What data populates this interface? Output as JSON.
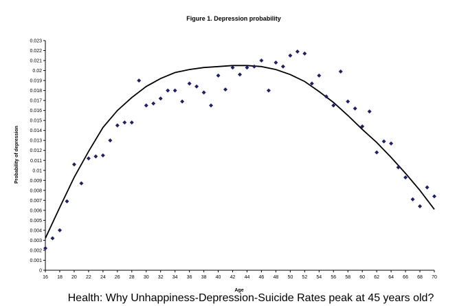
{
  "chart_data": {
    "type": "scatter",
    "title": "Figure 1. Depression probability",
    "xlabel": "Age",
    "ylabel": "Probability of depression",
    "xlim": [
      16,
      70
    ],
    "ylim": [
      0,
      0.023
    ],
    "x_ticks": [
      "16",
      "18",
      "20",
      "22",
      "24",
      "26",
      "28",
      "30",
      "32",
      "34",
      "36",
      "38",
      "40",
      "42",
      "44",
      "46",
      "48",
      "50",
      "52",
      "54",
      "56",
      "58",
      "60",
      "62",
      "64",
      "66",
      "68",
      "70"
    ],
    "y_ticks": [
      "0",
      "0.001",
      "0.002",
      "0.003",
      "0.004",
      "0.005",
      "0.006",
      "0.007",
      "0.008",
      "0.009",
      "0.01",
      "0.011",
      "0.012",
      "0.013",
      "0.014",
      "0.015",
      "0.016",
      "0.017",
      "0.018",
      "0.019",
      "0.02",
      "0.021",
      "0.022",
      "0.023"
    ],
    "grid": false,
    "series": [
      {
        "kind": "points",
        "marker": "diamond",
        "color": "#1f1f6e",
        "points": [
          [
            16,
            0.0022
          ],
          [
            17,
            0.0032
          ],
          [
            18,
            0.004
          ],
          [
            19,
            0.0069
          ],
          [
            20,
            0.0106
          ],
          [
            21,
            0.0087
          ],
          [
            22,
            0.0112
          ],
          [
            23,
            0.0114
          ],
          [
            24,
            0.0115
          ],
          [
            25,
            0.013
          ],
          [
            26,
            0.0145
          ],
          [
            27,
            0.0148
          ],
          [
            28,
            0.0148
          ],
          [
            29,
            0.019
          ],
          [
            30,
            0.0165
          ],
          [
            31,
            0.0167
          ],
          [
            32,
            0.0172
          ],
          [
            33,
            0.018
          ],
          [
            34,
            0.018
          ],
          [
            35,
            0.0169
          ],
          [
            36,
            0.0187
          ],
          [
            37,
            0.0184
          ],
          [
            38,
            0.0178
          ],
          [
            39,
            0.0165
          ],
          [
            40,
            0.0195
          ],
          [
            41,
            0.0181
          ],
          [
            42,
            0.0203
          ],
          [
            43,
            0.0196
          ],
          [
            44,
            0.0203
          ],
          [
            45,
            0.0204
          ],
          [
            46,
            0.021
          ],
          [
            47,
            0.018
          ],
          [
            48,
            0.0208
          ],
          [
            49,
            0.0204
          ],
          [
            50,
            0.0215
          ],
          [
            51,
            0.0219
          ],
          [
            52,
            0.0217
          ],
          [
            53,
            0.0187
          ],
          [
            54,
            0.0195
          ],
          [
            55,
            0.0174
          ],
          [
            56,
            0.0165
          ],
          [
            57,
            0.0199
          ],
          [
            58,
            0.0169
          ],
          [
            59,
            0.0162
          ],
          [
            60,
            0.0144
          ],
          [
            61,
            0.0159
          ],
          [
            62,
            0.0118
          ],
          [
            63,
            0.0129
          ],
          [
            64,
            0.0127
          ],
          [
            65,
            0.0103
          ],
          [
            66,
            0.0093
          ],
          [
            67,
            0.0071
          ],
          [
            68,
            0.0064
          ],
          [
            69,
            0.0083
          ],
          [
            70,
            0.0074
          ]
        ]
      },
      {
        "kind": "fitted_curve",
        "color": "#000000",
        "points": [
          [
            16,
            0.0032
          ],
          [
            18,
            0.0063
          ],
          [
            20,
            0.0093
          ],
          [
            22,
            0.0119
          ],
          [
            24,
            0.0143
          ],
          [
            26,
            0.016
          ],
          [
            28,
            0.0173
          ],
          [
            30,
            0.0184
          ],
          [
            32,
            0.0192
          ],
          [
            34,
            0.0198
          ],
          [
            36,
            0.0201
          ],
          [
            38,
            0.0203
          ],
          [
            40,
            0.0204
          ],
          [
            42,
            0.0205
          ],
          [
            44,
            0.0205
          ],
          [
            46,
            0.0204
          ],
          [
            48,
            0.0201
          ],
          [
            50,
            0.0196
          ],
          [
            52,
            0.0189
          ],
          [
            54,
            0.0179
          ],
          [
            56,
            0.0168
          ],
          [
            58,
            0.0155
          ],
          [
            60,
            0.0141
          ],
          [
            62,
            0.0128
          ],
          [
            64,
            0.0113
          ],
          [
            66,
            0.0097
          ],
          [
            68,
            0.008
          ],
          [
            70,
            0.0061
          ]
        ]
      }
    ]
  },
  "caption": "Health: Why Unhappiness-Depression-Suicide Rates peak at 45 years old?"
}
